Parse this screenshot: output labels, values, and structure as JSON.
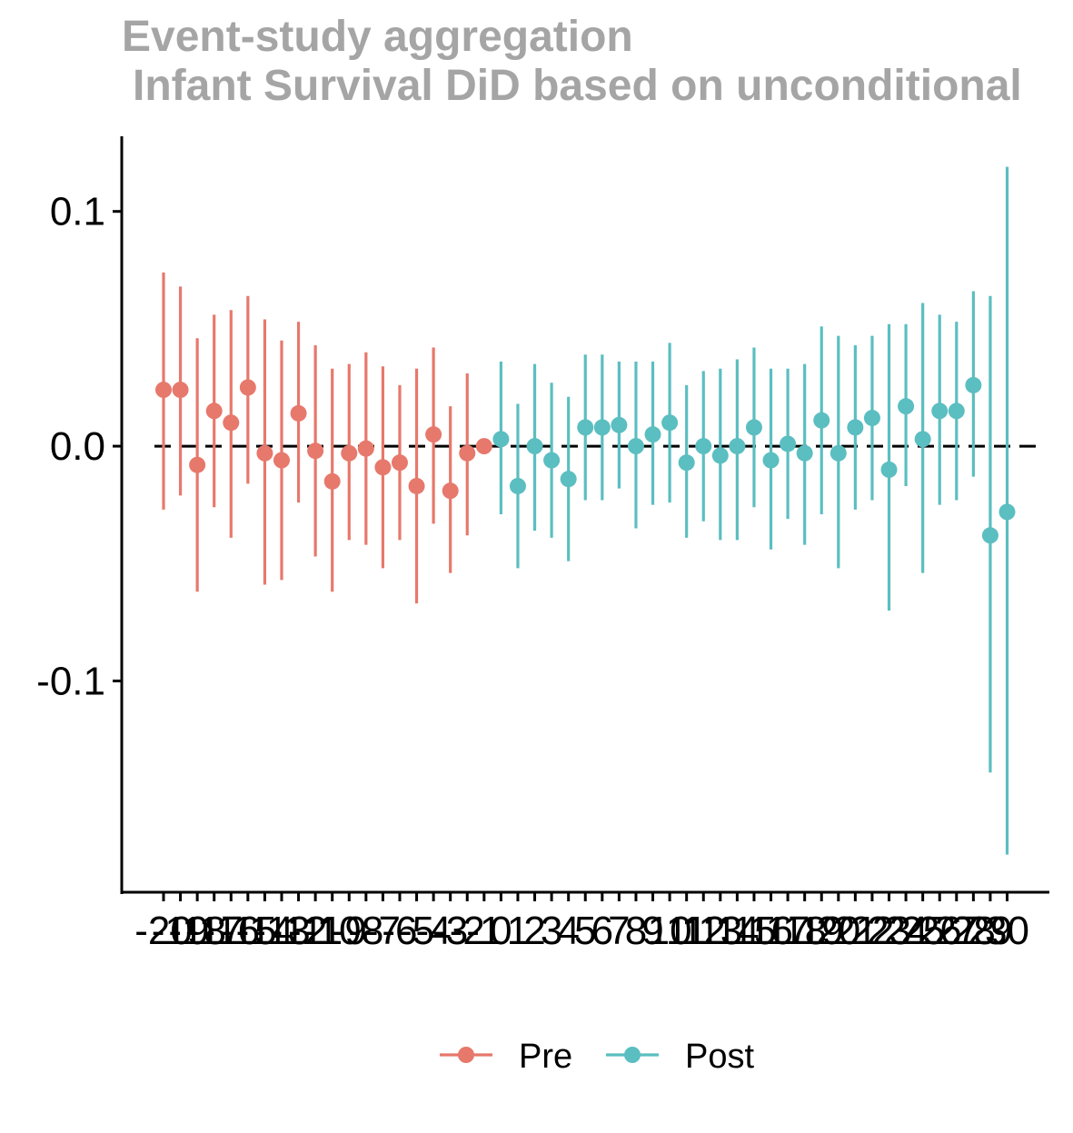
{
  "chart_data": {
    "type": "scatter",
    "subtype": "point-range",
    "title": "Event-study aggregation",
    "subtitle": "Infant Survival DiD based on unconditional",
    "xlabel": "",
    "ylabel": "",
    "ylim": [
      -0.19,
      0.132
    ],
    "yticks": [
      "0.1",
      "0.0",
      "-0.1"
    ],
    "ytick_values": [
      0.1,
      0.0,
      -0.1
    ],
    "reference_line": {
      "y": 0,
      "style": "dashed",
      "color": "#000000"
    },
    "grid": false,
    "legend_position": "bottom",
    "series": [
      {
        "name": "Pre",
        "color": "#E7786C",
        "x": [
          -20,
          -19,
          -18,
          -17,
          -16,
          -15,
          -14,
          -13,
          -12,
          -11,
          -10,
          -9,
          -8,
          -7,
          -6,
          -5,
          -4,
          -3,
          -2,
          -1
        ],
        "y": [
          0.024,
          0.024,
          -0.008,
          0.015,
          0.01,
          0.025,
          -0.003,
          -0.006,
          0.014,
          -0.002,
          -0.015,
          -0.003,
          -0.001,
          -0.009,
          -0.007,
          -0.017,
          0.005,
          -0.019,
          -0.003,
          0.0
        ],
        "lower": [
          -0.027,
          -0.021,
          -0.062,
          -0.026,
          -0.039,
          -0.016,
          -0.059,
          -0.057,
          -0.024,
          -0.047,
          -0.062,
          -0.04,
          -0.042,
          -0.052,
          -0.04,
          -0.067,
          -0.033,
          -0.054,
          -0.038,
          0.0
        ],
        "upper": [
          0.074,
          0.068,
          0.046,
          0.056,
          0.058,
          0.064,
          0.054,
          0.045,
          0.053,
          0.043,
          0.033,
          0.035,
          0.04,
          0.034,
          0.026,
          0.033,
          0.042,
          0.017,
          0.031,
          0.0
        ]
      },
      {
        "name": "Post",
        "color": "#5BBEC1",
        "x": [
          0,
          1,
          2,
          3,
          4,
          5,
          6,
          7,
          8,
          9,
          10,
          11,
          12,
          13,
          14,
          15,
          16,
          17,
          18,
          19,
          20,
          21,
          22,
          23,
          24,
          25,
          26,
          27,
          28,
          29,
          30
        ],
        "y": [
          0.003,
          -0.017,
          0.0,
          -0.006,
          -0.014,
          0.008,
          0.008,
          0.009,
          0.0,
          0.005,
          0.01,
          -0.007,
          0.0,
          -0.004,
          0.0,
          0.008,
          -0.006,
          0.001,
          -0.003,
          0.011,
          -0.003,
          0.008,
          0.012,
          -0.01,
          0.017,
          0.003,
          0.015,
          0.015,
          0.026,
          -0.038,
          -0.028
        ],
        "lower": [
          -0.029,
          -0.052,
          -0.036,
          -0.039,
          -0.049,
          -0.023,
          -0.023,
          -0.018,
          -0.035,
          -0.025,
          -0.024,
          -0.039,
          -0.032,
          -0.04,
          -0.04,
          -0.026,
          -0.044,
          -0.031,
          -0.042,
          -0.029,
          -0.052,
          -0.027,
          -0.023,
          -0.07,
          -0.017,
          -0.054,
          -0.025,
          -0.023,
          -0.013,
          -0.139,
          -0.174
        ],
        "upper": [
          0.036,
          0.018,
          0.035,
          0.027,
          0.021,
          0.039,
          0.039,
          0.036,
          0.036,
          0.036,
          0.044,
          0.026,
          0.032,
          0.033,
          0.037,
          0.042,
          0.033,
          0.033,
          0.035,
          0.051,
          0.047,
          0.043,
          0.047,
          0.052,
          0.052,
          0.061,
          0.056,
          0.053,
          0.066,
          0.064,
          0.119
        ]
      }
    ],
    "xtick_labels": [
      "-20",
      "-19",
      "-18",
      "-17",
      "-16",
      "-15",
      "-14",
      "-13",
      "-12",
      "-11",
      "-10",
      "-9",
      "-8",
      "-7",
      "-6",
      "-5",
      "-4",
      "-3",
      "-2",
      "-1",
      "0",
      "1",
      "2",
      "3",
      "4",
      "5",
      "6",
      "7",
      "8",
      "9",
      "10",
      "11",
      "12",
      "13",
      "14",
      "15",
      "16",
      "17",
      "18",
      "19",
      "20",
      "21",
      "22",
      "23",
      "24",
      "25",
      "26",
      "27",
      "28",
      "29",
      "30"
    ]
  }
}
